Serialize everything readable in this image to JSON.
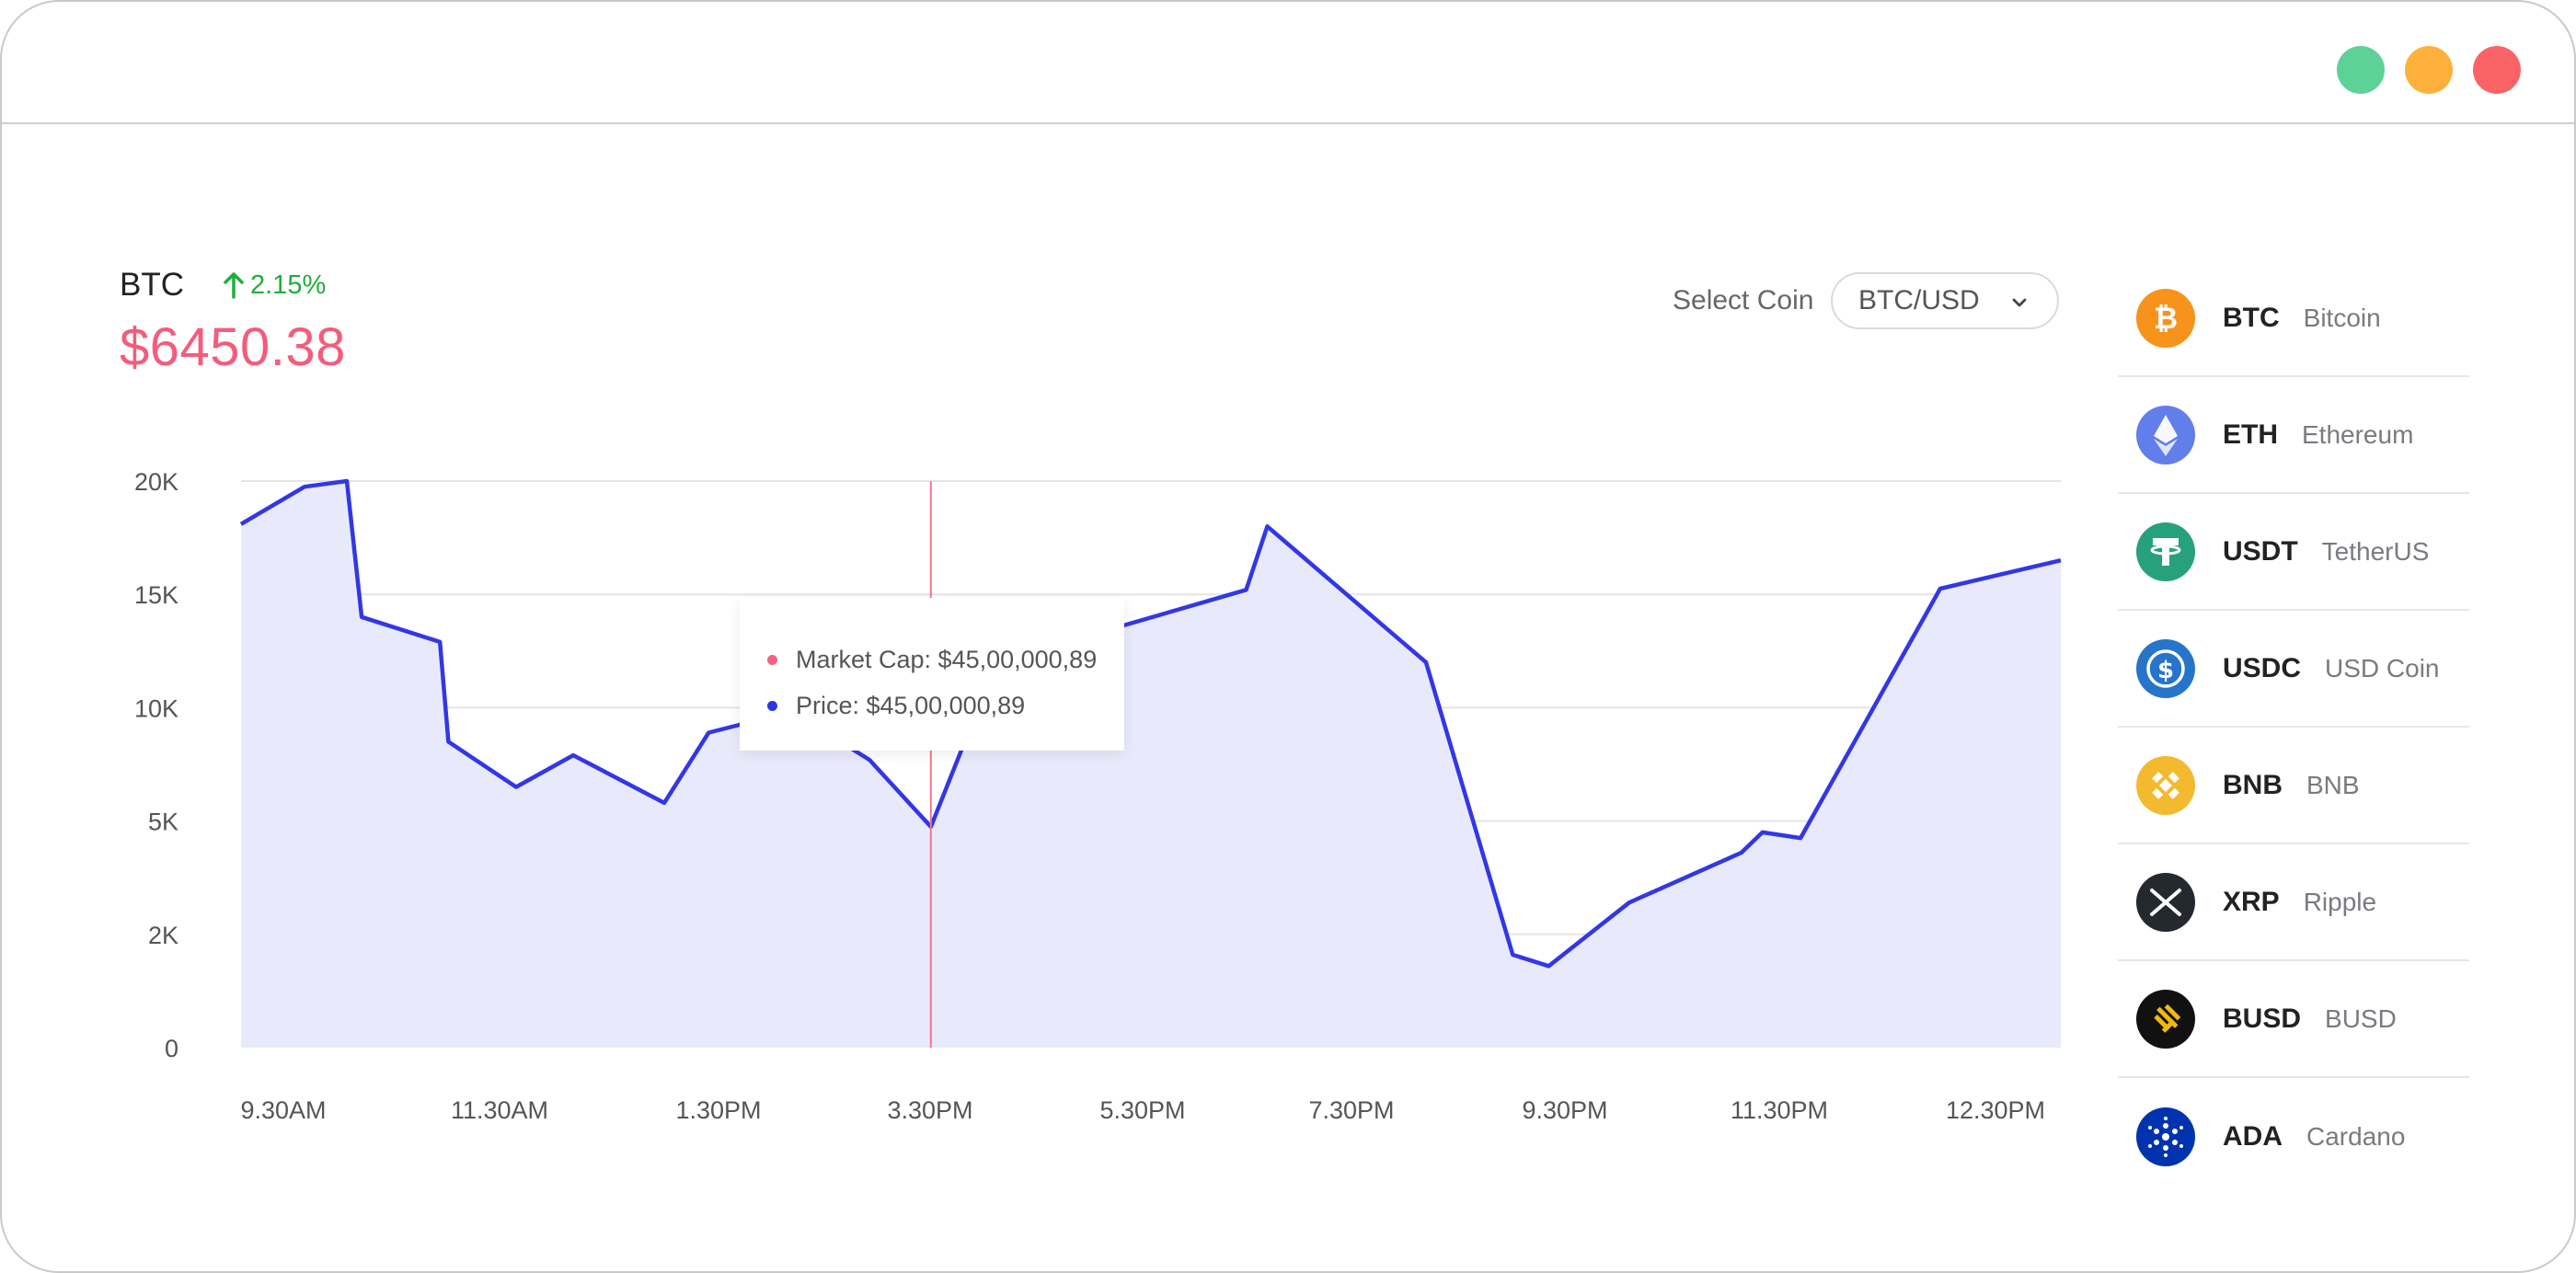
{
  "window": {
    "controls": [
      "minimize",
      "maximize",
      "close"
    ]
  },
  "header": {
    "symbol": "BTC",
    "change": "2.15%",
    "price": "$6450.38"
  },
  "select": {
    "label": "Select Coin",
    "value": "BTC/USD"
  },
  "tooltip": {
    "market_cap": "Market Cap: $45,00,000,89",
    "price": "Price: $45,00,000,89"
  },
  "colors": {
    "line": "#3237e6",
    "area": "#e8eafb",
    "price": "#f45c7c",
    "positive": "#1fae3a",
    "crosshair": "#f5748f"
  },
  "chart_data": {
    "type": "area",
    "y_tick_labels": [
      "0",
      "2K",
      "5K",
      "10K",
      "15K",
      "20K"
    ],
    "x_tick_labels": [
      "9.30AM",
      "11.30AM",
      "1.30PM",
      "3.30PM",
      "5.30PM",
      "7.30PM",
      "9.30PM",
      "11.30PM",
      "12.30PM"
    ],
    "y_levels": [
      0,
      1,
      2,
      3,
      4,
      5
    ],
    "x_range": [
      0,
      8.6
    ],
    "series": [
      {
        "x": [
          0,
          0.3,
          0.5,
          0.57,
          0.94,
          0.98,
          1.3,
          1.57,
          2.0,
          2.21,
          2.57,
          2.7,
          2.85,
          2.97,
          3.26,
          3.57,
          4.75,
          4.85,
          5.6,
          6.01,
          6.18,
          6.56,
          7.09,
          7.19,
          7.37,
          8.03,
          8.6
        ],
        "y": [
          4.62,
          4.95,
          5.0,
          3.8,
          3.58,
          2.7,
          2.3,
          2.58,
          2.16,
          2.78,
          2.95,
          3.0,
          2.68,
          2.54,
          1.95,
          3.4,
          4.04,
          4.6,
          3.4,
          0.82,
          0.72,
          1.28,
          1.72,
          1.9,
          1.85,
          4.05,
          4.3
        ]
      }
    ],
    "crosshair_x": 3.26,
    "grid": true
  },
  "coins": [
    {
      "ticker": "BTC",
      "name": "Bitcoin",
      "icon": "bitcoin-icon",
      "color": "#f7931a"
    },
    {
      "ticker": "ETH",
      "name": "Ethereum",
      "icon": "ethereum-icon",
      "color": "#627eea"
    },
    {
      "ticker": "USDT",
      "name": "TetherUS",
      "icon": "tether-icon",
      "color": "#26a17b"
    },
    {
      "ticker": "USDC",
      "name": "USD Coin",
      "icon": "usdc-icon",
      "color": "#2775ca"
    },
    {
      "ticker": "BNB",
      "name": "BNB",
      "icon": "bnb-icon",
      "color": "#f3ba2f"
    },
    {
      "ticker": "XRP",
      "name": "Ripple",
      "icon": "xrp-icon",
      "color": "#23292f"
    },
    {
      "ticker": "BUSD",
      "name": "BUSD",
      "icon": "busd-icon",
      "color": "#f0b90b"
    },
    {
      "ticker": "ADA",
      "name": "Cardano",
      "icon": "cardano-icon",
      "color": "#0033ad"
    }
  ]
}
